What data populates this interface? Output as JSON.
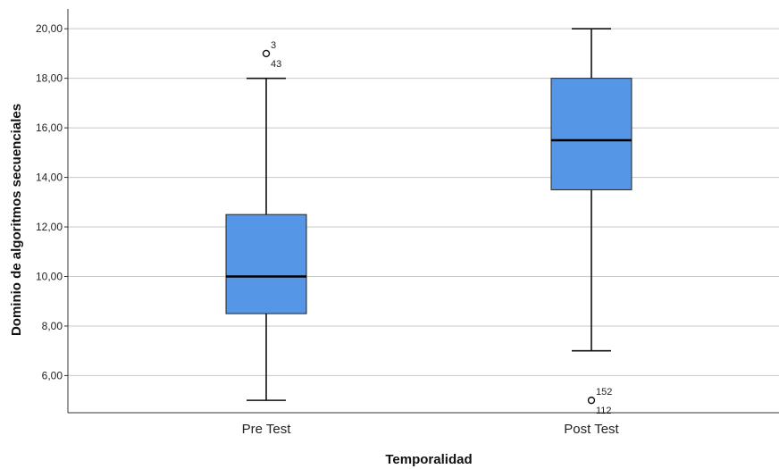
{
  "chart_data": {
    "type": "boxplot",
    "xlabel": "Temporalidad",
    "ylabel": "Dominio de algoritmos secuenciales",
    "ylim": [
      4.5,
      20.8
    ],
    "yticks": [
      "6,00",
      "8,00",
      "10,00",
      "12,00",
      "14,00",
      "16,00",
      "18,00",
      "20,00"
    ],
    "ytick_values": [
      6,
      8,
      10,
      12,
      14,
      16,
      18,
      20
    ],
    "grid": "horizontal",
    "box_color": "#5596e6",
    "categories": [
      "Pre Test",
      "Post Test"
    ],
    "boxes": [
      {
        "category": "Pre Test",
        "whisker_low": 5.0,
        "q1": 8.5,
        "median": 10.0,
        "q3": 12.5,
        "whisker_high": 18.0,
        "outliers": [
          {
            "value": 19.0,
            "labels": [
              "3",
              "43"
            ]
          }
        ]
      },
      {
        "category": "Post Test",
        "whisker_low": 7.0,
        "q1": 13.5,
        "median": 15.5,
        "q3": 18.0,
        "whisker_high": 20.0,
        "outliers": [
          {
            "value": 5.0,
            "labels": [
              "152",
              "112"
            ]
          }
        ]
      }
    ]
  }
}
